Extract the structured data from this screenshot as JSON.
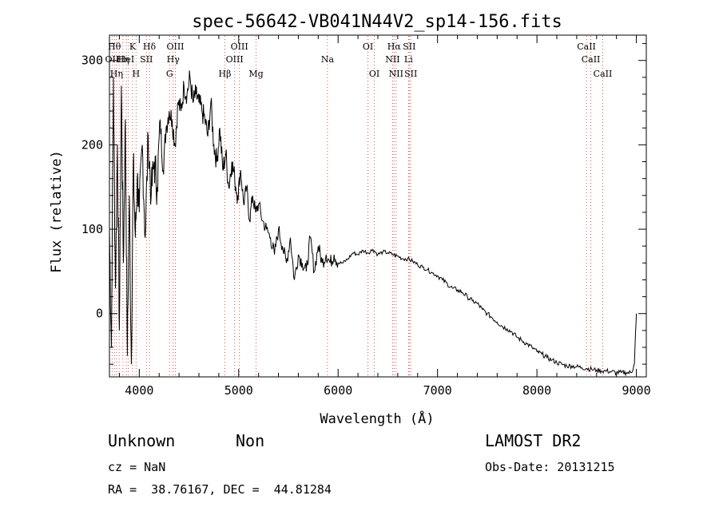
{
  "chart_data": {
    "type": "line",
    "title": "spec-56642-VB041N44V2_sp14-156.fits",
    "xlabel": "Wavelength (Å)",
    "ylabel": "Flux (relative)",
    "xlim": [
      3700,
      9100
    ],
    "ylim": [
      -75,
      330
    ],
    "xticks": [
      4000,
      5000,
      6000,
      7000,
      8000,
      9000
    ],
    "yticks": [
      0,
      100,
      200,
      300
    ],
    "grid": false,
    "series": [
      {
        "x": [
          3700,
          3720,
          3740,
          3760,
          3780,
          3800,
          3820,
          3840,
          3860,
          3880,
          3900,
          3920,
          3940,
          3960,
          3980,
          4000,
          4030,
          4060,
          4090,
          4120,
          4150,
          4180,
          4210,
          4240,
          4270,
          4300,
          4330,
          4360,
          4390,
          4420,
          4450,
          4480,
          4510,
          4540,
          4570,
          4600,
          4630,
          4660,
          4690,
          4720,
          4750,
          4780,
          4810,
          4840,
          4870,
          4900,
          4930,
          4960,
          4990,
          5020,
          5050,
          5080,
          5110,
          5140,
          5170,
          5200,
          5240,
          5280,
          5320,
          5360,
          5400,
          5440,
          5480,
          5520,
          5560,
          5600,
          5640,
          5680,
          5720,
          5760,
          5800,
          5840,
          5880,
          5920,
          5960,
          6000,
          6050,
          6100,
          6150,
          6200,
          6250,
          6300,
          6350,
          6400,
          6450,
          6500,
          6550,
          6600,
          6650,
          6700,
          6750,
          6800,
          6850,
          6900,
          6950,
          7000,
          7050,
          7100,
          7150,
          7200,
          7250,
          7300,
          7350,
          7400,
          7450,
          7500,
          7550,
          7600,
          7650,
          7700,
          7750,
          7800,
          7850,
          7900,
          7950,
          8000,
          8050,
          8100,
          8150,
          8200,
          8250,
          8300,
          8350,
          8400,
          8450,
          8500,
          8550,
          8600,
          8650,
          8700,
          8750,
          8800,
          8850,
          8900,
          8950,
          8980,
          9000
        ],
        "y": [
          100,
          -40,
          280,
          30,
          200,
          -20,
          270,
          60,
          230,
          -50,
          140,
          -60,
          180,
          90,
          160,
          120,
          200,
          90,
          210,
          140,
          180,
          150,
          230,
          170,
          220,
          240,
          230,
          200,
          250,
          240,
          270,
          260,
          280,
          250,
          260,
          250,
          240,
          230,
          210,
          250,
          200,
          180,
          220,
          170,
          190,
          150,
          180,
          160,
          140,
          170,
          130,
          150,
          110,
          140,
          120,
          130,
          110,
          100,
          90,
          70,
          100,
          80,
          60,
          90,
          40,
          70,
          60,
          50,
          90,
          50,
          80,
          60,
          70,
          60,
          70,
          60,
          60,
          65,
          72,
          70,
          75,
          72,
          76,
          70,
          73,
          72,
          70,
          68,
          65,
          65,
          62,
          58,
          55,
          52,
          48,
          45,
          40,
          35,
          30,
          28,
          25,
          20,
          15,
          12,
          5,
          0,
          -5,
          -10,
          -15,
          -18,
          -22,
          -28,
          -32,
          -36,
          -40,
          -45,
          -48,
          -52,
          -55,
          -58,
          -60,
          -62,
          -62,
          -63,
          -64,
          -65,
          -66,
          -67,
          -68,
          -68,
          -69,
          -70,
          -70,
          -70,
          -70,
          -60,
          0
        ]
      }
    ],
    "lines": [
      {
        "x": 3727,
        "label": "OII",
        "row": 1
      },
      {
        "x": 3750,
        "label": "Hθ",
        "row": 0
      },
      {
        "x": 3771,
        "label": "Hη",
        "row": 2
      },
      {
        "x": 3798,
        "label": "",
        "row": -1
      },
      {
        "x": 3835,
        "label": "Hη",
        "row": 1
      },
      {
        "x": 3869,
        "label": "HeI",
        "row": 1
      },
      {
        "x": 3889,
        "label": "",
        "row": -1
      },
      {
        "x": 3933,
        "label": "K",
        "row": 0
      },
      {
        "x": 3968,
        "label": "H",
        "row": 2
      },
      {
        "x": 4072,
        "label": "SII",
        "row": 1
      },
      {
        "x": 4102,
        "label": "Hδ",
        "row": 0
      },
      {
        "x": 4305,
        "label": "G",
        "row": 2
      },
      {
        "x": 4341,
        "label": "Hγ",
        "row": 1
      },
      {
        "x": 4363,
        "label": "OIII",
        "row": 0
      },
      {
        "x": 4861,
        "label": "Hβ",
        "row": 2
      },
      {
        "x": 4959,
        "label": "OIII",
        "row": 1
      },
      {
        "x": 5007,
        "label": "OIII",
        "row": 0
      },
      {
        "x": 5175,
        "label": "Mg",
        "row": 2
      },
      {
        "x": 5893,
        "label": "Na",
        "row": 1
      },
      {
        "x": 6300,
        "label": "OI",
        "row": 0
      },
      {
        "x": 6364,
        "label": "OI",
        "row": 2
      },
      {
        "x": 6548,
        "label": "NII",
        "row": 1
      },
      {
        "x": 6563,
        "label": "Hα",
        "row": 0
      },
      {
        "x": 6583,
        "label": "NII",
        "row": 2
      },
      {
        "x": 6708,
        "label": "Li",
        "row": 1
      },
      {
        "x": 6716,
        "label": "SII",
        "row": 0
      },
      {
        "x": 6731,
        "label": "SII",
        "row": 2
      },
      {
        "x": 8498,
        "label": "CaII",
        "row": 0
      },
      {
        "x": 8542,
        "label": "CaII",
        "row": 1
      },
      {
        "x": 8662,
        "label": "CaII",
        "row": 2
      }
    ],
    "line_color": "#e05050"
  },
  "info": {
    "class_text": "Unknown",
    "subclass_text": "Non",
    "cz_text": "cz = NaN",
    "coords_text": "RA =  38.76167, DEC =  44.81284",
    "survey_text": "LAMOST DR2",
    "obs_date_text": "Obs-Date: 20131215"
  }
}
